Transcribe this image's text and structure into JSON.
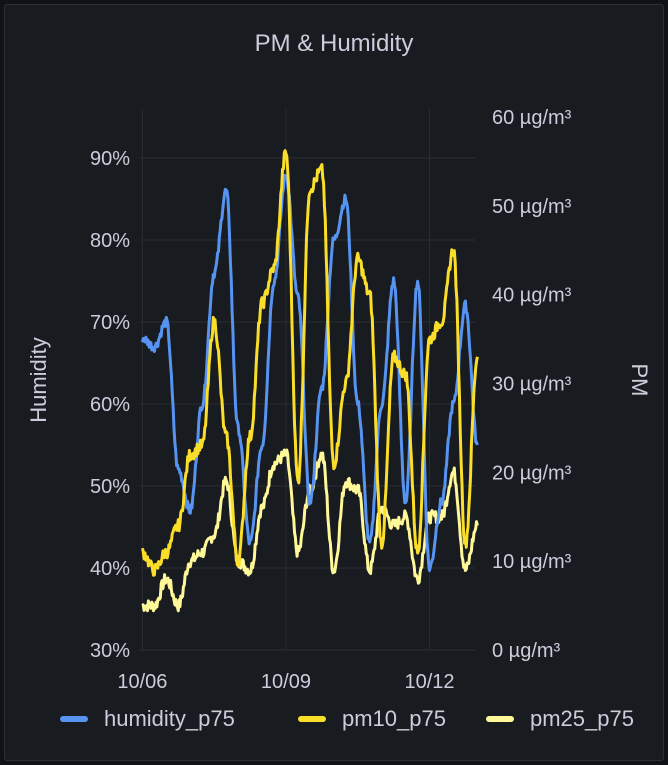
{
  "panel": {
    "title": "PM & Humidity"
  },
  "chart_data": {
    "type": "line",
    "title": "PM & Humidity",
    "x_ticks": [
      "10/06",
      "10/09",
      "10/12"
    ],
    "y_left": {
      "label": "Humidity",
      "unit": "%",
      "ylim": [
        30,
        95
      ],
      "ticks": [
        "30%",
        "40%",
        "50%",
        "60%",
        "70%",
        "80%",
        "90%"
      ]
    },
    "y_right": {
      "label": "PM",
      "unit": "µg/m³",
      "ylim": [
        0,
        60
      ],
      "ticks": [
        "0 µg/m³",
        "10 µg/m³",
        "20 µg/m³",
        "30 µg/m³",
        "40 µg/m³",
        "50 µg/m³",
        "60 µg/m³"
      ]
    },
    "x_days": [
      0,
      0.25,
      0.5,
      0.75,
      1,
      1.25,
      1.5,
      1.75,
      2,
      2.25,
      2.5,
      2.75,
      3,
      3.25,
      3.5,
      3.75,
      4,
      4.25,
      4.5,
      4.75,
      5,
      5.25,
      5.5,
      5.75,
      6,
      6.25,
      6.5,
      6.75,
      7
    ],
    "x_range_days": [
      -0.05,
      6.95
    ],
    "series": [
      {
        "name": "humidity_p75",
        "axis": "left",
        "color": "#5794f2",
        "values": [
          68,
          67,
          70,
          52,
          47,
          60,
          76,
          86,
          57,
          43,
          55,
          75,
          88,
          73,
          48,
          62,
          80,
          85,
          60,
          43,
          60,
          75,
          48,
          75,
          40,
          48,
          60,
          72,
          55
        ]
      },
      {
        "name": "pm10_p75",
        "axis": "right",
        "color": "#fade2a",
        "values": [
          11,
          9,
          11,
          14,
          22,
          23,
          37,
          24,
          10,
          24,
          39,
          43,
          56,
          19,
          52,
          54,
          21,
          30,
          44,
          40,
          12,
          33,
          31,
          11,
          35,
          37,
          45,
          12,
          33
        ]
      },
      {
        "name": "pm25_p75",
        "axis": "right",
        "color": "#fff899",
        "values": [
          5,
          5,
          8,
          5,
          10,
          11,
          13,
          19,
          10,
          9,
          16,
          21,
          22,
          11,
          18,
          22,
          9,
          19,
          18,
          9,
          16,
          14,
          15,
          8,
          15,
          15,
          20,
          9,
          14
        ]
      }
    ]
  }
}
